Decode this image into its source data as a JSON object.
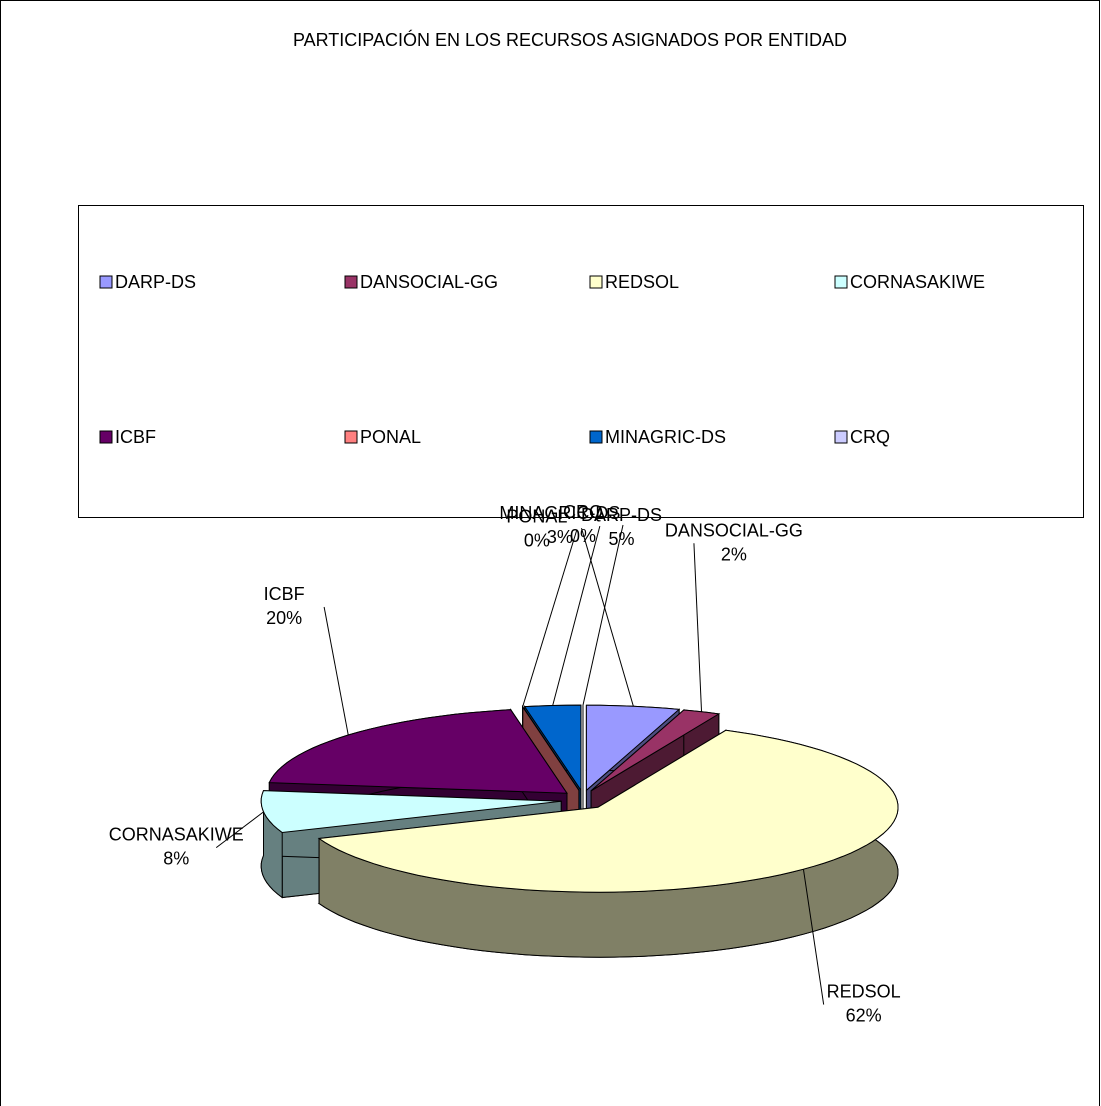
{
  "chart_data": {
    "type": "pie",
    "title": "PARTICIPACIÓN EN LOS RECURSOS ASIGNADOS POR ENTIDAD",
    "categories": [
      "DARP-DS",
      "DANSOCIAL-GG",
      "REDSOL",
      "CORNASAKIWE",
      "ICBF",
      "PONAL",
      "MINAGRIC-DS",
      "CRQ"
    ],
    "values": [
      5,
      2,
      62,
      8,
      20,
      0,
      3,
      0
    ],
    "value_labels": [
      "5%",
      "2%",
      "62%",
      "8%",
      "20%",
      "0%",
      "3%",
      "0%"
    ],
    "colors": [
      "#9999ff",
      "#993366",
      "#ffffcc",
      "#ccffff",
      "#660066",
      "#ff8080",
      "#0066cc",
      "#ccccff"
    ]
  }
}
